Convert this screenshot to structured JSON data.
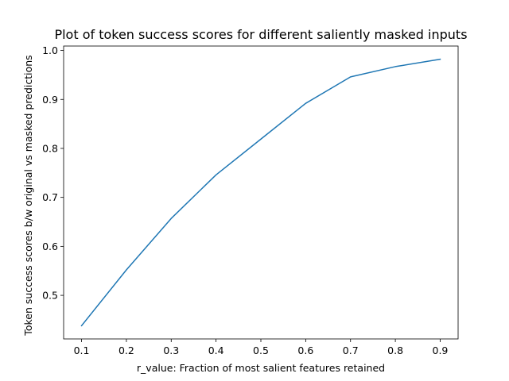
{
  "chart_data": {
    "type": "line",
    "title": "Plot of token success scores for different saliently masked inputs",
    "xlabel": "r_value: Fraction of most salient features retained",
    "ylabel": "Token success scores b/w original vs masked predictions",
    "x": [
      0.1,
      0.2,
      0.3,
      0.4,
      0.5,
      0.6,
      0.7,
      0.8,
      0.9
    ],
    "series": [
      {
        "values": [
          0.438,
          0.552,
          0.657,
          0.746,
          0.819,
          0.892,
          0.946,
          0.967,
          0.982
        ],
        "color": "#1f77b4"
      }
    ],
    "xticks": [
      "0.1",
      "0.2",
      "0.3",
      "0.4",
      "0.5",
      "0.6",
      "0.7",
      "0.8",
      "0.9"
    ],
    "yticks": [
      "0.5",
      "0.6",
      "0.7",
      "0.8",
      "0.9",
      "1.0"
    ],
    "xlim": [
      0.06,
      0.94
    ],
    "ylim": [
      0.411,
      1.009
    ],
    "grid": false,
    "legend": "none"
  }
}
